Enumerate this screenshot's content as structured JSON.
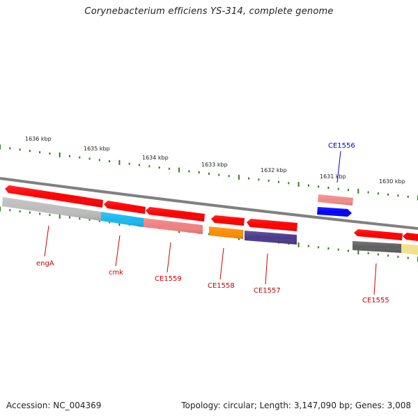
{
  "title": "Corynebacterium efficiens YS-314, complete genome",
  "footer": {
    "accession": "Accession: NC_004369",
    "summary": "Topology: circular; Length: 3,147,090 bp; Genes: 3,008"
  },
  "ruler": {
    "labels": [
      "1636 kbp",
      "1635 kbp",
      "1634 kbp",
      "1633 kbp",
      "1632 kbp",
      "1631 kbp",
      "1630 kbp"
    ],
    "tick_color": "#2e7d1a"
  },
  "gene_labels": [
    {
      "text": "engA",
      "color": "#cc0000"
    },
    {
      "text": "cmk",
      "color": "#cc0000"
    },
    {
      "text": "CE1559",
      "color": "#cc0000"
    },
    {
      "text": "CE1558",
      "color": "#cc0000"
    },
    {
      "text": "CE1557",
      "color": "#cc0000"
    },
    {
      "text": "CE1556",
      "color": "#0000cc"
    },
    {
      "text": "CE1555",
      "color": "#cc0000"
    }
  ],
  "colors": {
    "backbone": "#808080",
    "gene_red": "#ff0000",
    "gene_pink": "#f28a8a",
    "gene_blue": "#0000ff",
    "cog_grey": "#bdbdbd",
    "cog_cyan": "#1ab8f0",
    "cog_pink": "#f08080",
    "cog_orange": "#ff8c00",
    "cog_purple": "#4b3a8c",
    "cog_dark": "#606060",
    "cog_yellow": "#f0e28c",
    "label_red": "#cc0000",
    "label_blue": "#0000cc"
  }
}
